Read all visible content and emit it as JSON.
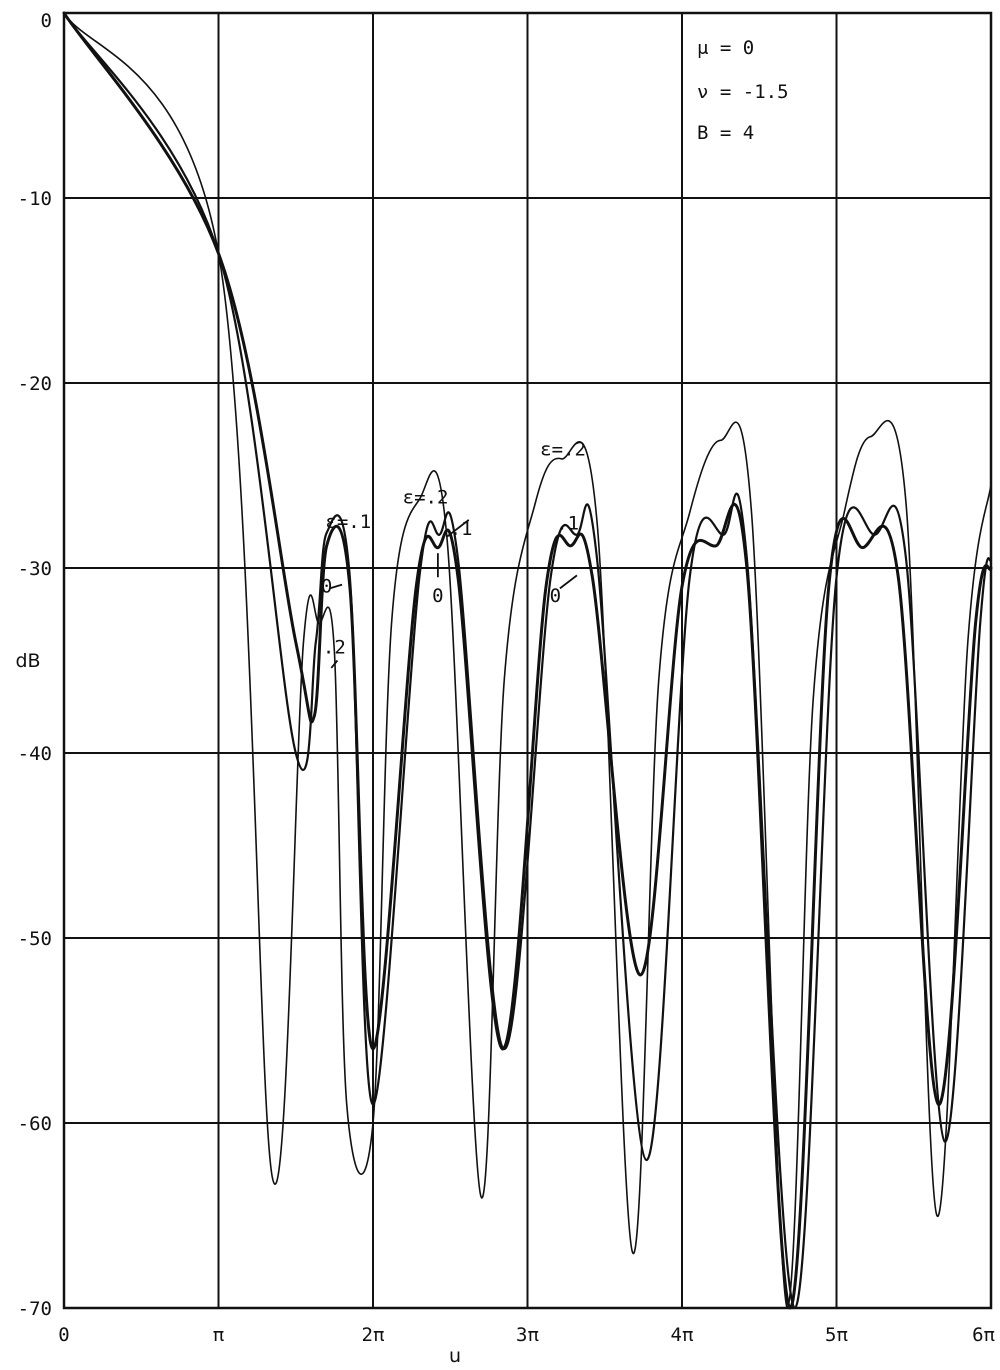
{
  "chart_data": {
    "type": "line",
    "xlabel": "u",
    "ylabel": "dB",
    "xlim_pi": [
      0,
      6
    ],
    "ylim": [
      -70,
      0
    ],
    "grid": true,
    "x_ticks": [
      "0",
      "π",
      "2π",
      "3π",
      "4π",
      "5π",
      "6π"
    ],
    "y_ticks": [
      "0",
      "-10",
      "-20",
      "-30",
      "-40",
      "-50",
      "-60",
      "-70"
    ],
    "parameters": [
      "μ = 0",
      "ν = -1.5",
      "B = 4"
    ],
    "series": [
      {
        "epsilon": "0",
        "x_pi": [
          0,
          1,
          1.5,
          1.62,
          1.7,
          1.85,
          2.0,
          2.28,
          2.42,
          2.55,
          2.84,
          3.12,
          3.28,
          3.42,
          3.73,
          4.0,
          4.22,
          4.42,
          4.7,
          4.95,
          5.17,
          5.4,
          5.66,
          5.9,
          6.0
        ],
        "y": [
          0,
          -13,
          -34,
          -38,
          -28.8,
          -31,
          -56,
          -31,
          -28.9,
          -30.5,
          -56,
          -31,
          -28.8,
          -30.5,
          -52,
          -31,
          -28.8,
          -30,
          -70,
          -31,
          -28.9,
          -30.5,
          -59,
          -33,
          -30
        ]
      },
      {
        "epsilon": ".1",
        "x_pi": [
          0,
          1,
          1.5,
          1.63,
          1.7,
          1.85,
          2.0,
          2.3,
          2.43,
          2.55,
          2.85,
          3.15,
          3.32,
          3.45,
          3.77,
          4.05,
          4.27,
          4.42,
          4.73,
          5.0,
          5.25,
          5.45,
          5.7,
          5.93,
          6.0
        ],
        "y": [
          0,
          -13,
          -40,
          -34,
          -28.1,
          -30.5,
          -59,
          -30.5,
          -28.2,
          -29.5,
          -56,
          -30.5,
          -28.2,
          -29.5,
          -62,
          -30.5,
          -28.2,
          -29.5,
          -70,
          -30.5,
          -28.2,
          -29.5,
          -61,
          -33,
          -29.5
        ]
      },
      {
        "epsilon": ".2",
        "x_pi": [
          0,
          1,
          1.35,
          1.55,
          1.65,
          1.75,
          1.83,
          2.0,
          2.12,
          2.3,
          2.48,
          2.7,
          2.85,
          3.05,
          3.22,
          3.45,
          3.68,
          3.85,
          4.05,
          4.25,
          4.45,
          4.68,
          4.85,
          5.05,
          5.22,
          5.45,
          5.65,
          5.85,
          6.0
        ],
        "y": [
          0,
          -13,
          -63,
          -34,
          -33,
          -34.5,
          -59,
          -60,
          -33,
          -26.3,
          -28.5,
          -64,
          -36,
          -26.5,
          -24.1,
          -27.5,
          -67,
          -36,
          -27,
          -23.1,
          -27,
          -70,
          -37,
          -27,
          -22.9,
          -26.5,
          -65,
          -34,
          -25.5
        ]
      }
    ],
    "annotations": [
      {
        "text": "ε=.1",
        "x_pi": 1.84,
        "y": -27.5
      },
      {
        "text": "0",
        "x_pi": 1.7,
        "y": -31
      },
      {
        "text": ".2",
        "x_pi": 1.75,
        "y": -34.3
      },
      {
        "text": "ε=.2",
        "x_pi": 2.34,
        "y": -26.2
      },
      {
        "text": ".1",
        "x_pi": 2.57,
        "y": -27.9
      },
      {
        "text": "0",
        "x_pi": 2.42,
        "y": -31.5
      },
      {
        "text": "ε=.2",
        "x_pi": 3.23,
        "y": -23.6
      },
      {
        "text": ".1",
        "x_pi": 3.26,
        "y": -27.6
      },
      {
        "text": "0",
        "x_pi": 3.18,
        "y": -31.5
      }
    ]
  }
}
